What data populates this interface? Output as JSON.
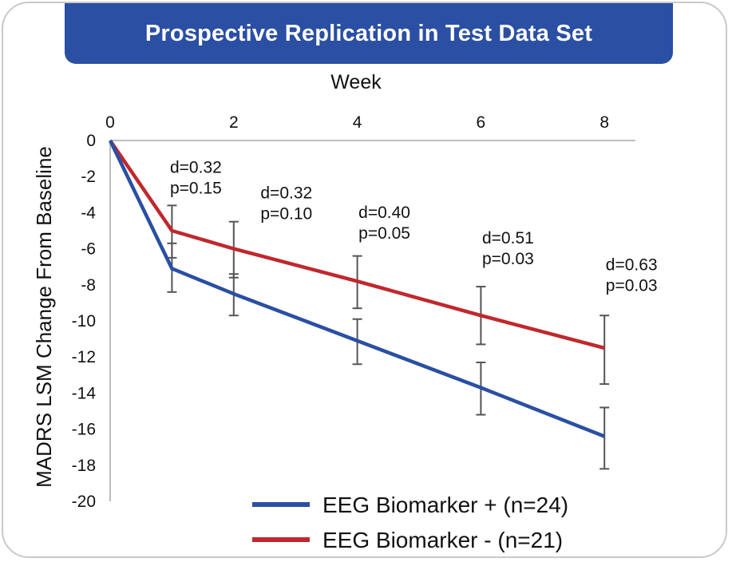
{
  "chart_data": {
    "type": "line",
    "title": "Prospective Replication in Test Data Set",
    "xlabel": "Week",
    "ylabel": "MADRS LSM Change From Baseline",
    "x_ticks": [
      0,
      2,
      4,
      6,
      8
    ],
    "y_ticks": [
      0,
      -2,
      -4,
      -6,
      -8,
      -10,
      -12,
      -14,
      -16,
      -18,
      -20
    ],
    "xlim": [
      0,
      8.5
    ],
    "ylim": [
      -20,
      0
    ],
    "series": [
      {
        "name": "EEG Biomarker + (n=24)",
        "color": "#2a4fa3",
        "x": [
          0,
          1,
          2,
          4,
          6,
          8
        ],
        "values": [
          0,
          -7.1,
          -8.5,
          -11.1,
          -13.7,
          -16.4
        ],
        "err_low": [
          null,
          -8.4,
          -9.7,
          -12.4,
          -15.2,
          -18.2
        ],
        "err_high": [
          null,
          -5.7,
          -7.4,
          -9.9,
          -12.3,
          -14.8
        ]
      },
      {
        "name": "EEG Biomarker - (n=21)",
        "color": "#c0282d",
        "x": [
          0,
          1,
          2,
          4,
          6,
          8
        ],
        "values": [
          0,
          -5.0,
          -6.0,
          -7.8,
          -9.7,
          -11.5
        ],
        "err_low": [
          null,
          -6.5,
          -7.6,
          -9.3,
          -11.3,
          -13.5
        ],
        "err_high": [
          null,
          -3.6,
          -4.5,
          -6.4,
          -8.1,
          -9.7
        ]
      }
    ],
    "annotations": [
      {
        "x": 1,
        "y": -1.8,
        "d": "d=0.32",
        "p": "p=0.15"
      },
      {
        "x": 2,
        "y": -3.2,
        "d": "d=0.32",
        "p": "p=0.10"
      },
      {
        "x": 4,
        "y": -4.3,
        "d": "d=0.40",
        "p": "p=0.05"
      },
      {
        "x": 6,
        "y": -5.7,
        "d": "d=0.51",
        "p": "p=0.03"
      },
      {
        "x": 8,
        "y": -7.2,
        "d": "d=0.63",
        "p": "p=0.03"
      }
    ],
    "legend_position": "bottom-right",
    "grid": false
  }
}
